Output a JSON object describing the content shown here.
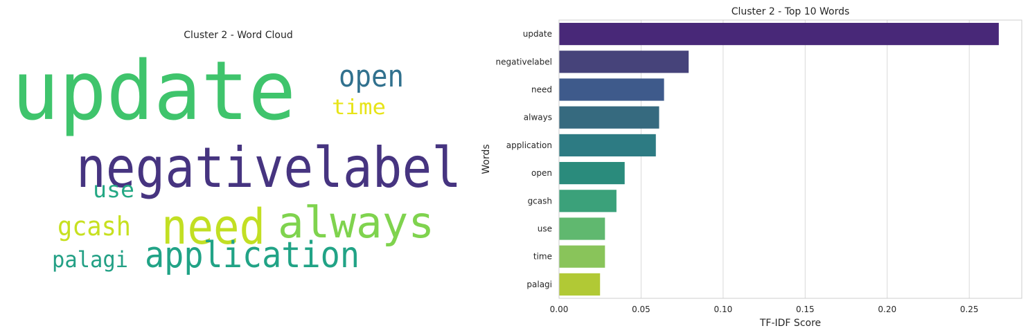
{
  "chart_data": [
    {
      "type": "wordcloud",
      "title": "Cluster 2 - Word Cloud",
      "words": [
        {
          "text": "update",
          "color": "#3fc46c"
        },
        {
          "text": "open",
          "color": "#31718e"
        },
        {
          "text": "time",
          "color": "#e7e419"
        },
        {
          "text": "negativelabel",
          "color": "#463480"
        },
        {
          "text": "use",
          "color": "#24a884"
        },
        {
          "text": "need",
          "color": "#c2df23"
        },
        {
          "text": "always",
          "color": "#7fd34e"
        },
        {
          "text": "gcash",
          "color": "#c7e020"
        },
        {
          "text": "application",
          "color": "#21a386"
        },
        {
          "text": "palagi",
          "color": "#23a085"
        }
      ]
    },
    {
      "type": "bar",
      "orientation": "horizontal",
      "title": "Cluster 2 - Top 10 Words",
      "xlabel": "TF-IDF Score",
      "ylabel": "Words",
      "categories": [
        "update",
        "negativelabel",
        "need",
        "always",
        "application",
        "open",
        "gcash",
        "use",
        "time",
        "palagi"
      ],
      "values": [
        0.268,
        0.079,
        0.064,
        0.061,
        0.059,
        0.04,
        0.035,
        0.028,
        0.028,
        0.025
      ],
      "colors": [
        "#482878",
        "#46437a",
        "#3e5a8b",
        "#366a7f",
        "#2d7b83",
        "#2a8b7c",
        "#3ba17a",
        "#60b86f",
        "#89c45a",
        "#b1c935"
      ],
      "xticks": [
        "0.00",
        "0.05",
        "0.10",
        "0.15",
        "0.20",
        "0.25"
      ],
      "xtick_values": [
        0,
        0.05,
        0.1,
        0.15,
        0.2,
        0.25
      ],
      "xlim": [
        0,
        0.282
      ],
      "grid": true
    }
  ]
}
